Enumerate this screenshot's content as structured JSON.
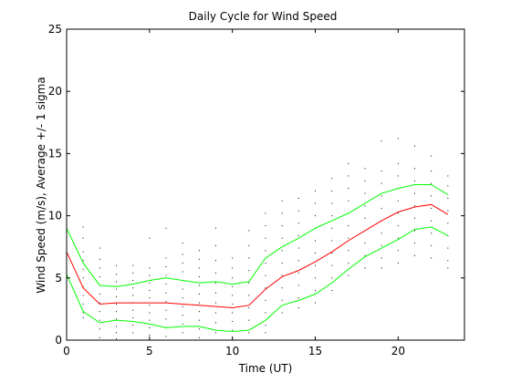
{
  "chart_data": {
    "type": "line",
    "title": "Daily Cycle for Wind Speed",
    "xlabel": "Time (UT)",
    "ylabel": "Wind Speed (m/s), Average +/- 1 sigma",
    "xlim": [
      0,
      24
    ],
    "ylim": [
      0,
      25
    ],
    "xticks": [
      0,
      5,
      10,
      15,
      20
    ],
    "yticks": [
      0,
      5,
      10,
      15,
      20,
      25
    ],
    "grid": false,
    "colors": {
      "average": "#ff0000",
      "sigma": "#00ff00",
      "scatter": "#000000",
      "axes": "#000000"
    },
    "x": [
      0,
      1,
      2,
      3,
      4,
      5,
      6,
      7,
      8,
      9,
      10,
      11,
      12,
      13,
      14,
      15,
      16,
      17,
      18,
      19,
      20,
      21,
      22,
      23
    ],
    "series": [
      {
        "values": [
          9.0,
          6.2,
          4.4,
          4.3,
          4.5,
          4.8,
          5.0,
          4.8,
          4.6,
          4.7,
          4.5,
          4.7,
          6.6,
          7.5,
          8.2,
          9.0,
          9.6,
          10.2,
          11.0,
          11.8,
          12.2,
          12.5,
          12.5,
          11.7
        ]
      },
      {
        "values": [
          7.1,
          4.2,
          2.9,
          3.0,
          3.0,
          3.0,
          3.0,
          2.9,
          2.8,
          2.7,
          2.6,
          2.8,
          4.1,
          5.1,
          5.6,
          6.3,
          7.1,
          8.0,
          8.8,
          9.6,
          10.3,
          10.7,
          10.9,
          10.1
        ]
      },
      {
        "values": [
          5.3,
          2.3,
          1.4,
          1.6,
          1.5,
          1.3,
          1.0,
          1.1,
          1.1,
          0.8,
          0.7,
          0.8,
          1.6,
          2.8,
          3.2,
          3.7,
          4.6,
          5.7,
          6.7,
          7.4,
          8.1,
          8.9,
          9.1,
          8.4
        ]
      }
    ],
    "scatter_columns": [
      {
        "x": 0,
        "values": [
          9.2,
          8.6,
          8.0,
          7.4,
          6.8,
          6.2,
          5.6,
          5.0,
          4.6
        ]
      },
      {
        "x": 1,
        "values": [
          9.1,
          8.2,
          7.1,
          6.4,
          5.7,
          5.0,
          4.3,
          3.6,
          2.9,
          2.2,
          1.8
        ]
      },
      {
        "x": 2,
        "values": [
          7.4,
          6.5,
          5.8,
          5.1,
          4.4,
          3.7,
          3.0,
          2.3,
          1.6,
          0.9,
          0.2
        ]
      },
      {
        "x": 3,
        "values": [
          6.0,
          5.3,
          4.7,
          4.1,
          3.5,
          2.9,
          2.3,
          1.7,
          1.1,
          0.6,
          0.1
        ]
      },
      {
        "x": 4,
        "values": [
          6.0,
          5.4,
          4.8,
          4.2,
          3.6,
          3.0,
          2.4,
          1.8,
          1.2,
          0.6
        ]
      },
      {
        "x": 5,
        "values": [
          8.2,
          5.8,
          5.2,
          4.6,
          4.0,
          3.4,
          2.8,
          2.2,
          1.6,
          1.0,
          0.4
        ]
      },
      {
        "x": 6,
        "values": [
          9.0,
          6.6,
          5.9,
          5.2,
          4.5,
          3.8,
          3.1,
          2.4,
          1.7,
          1.0,
          0.3
        ]
      },
      {
        "x": 7,
        "values": [
          7.8,
          6.9,
          6.2,
          5.5,
          4.8,
          4.1,
          3.4,
          2.7,
          2.0,
          1.3,
          0.6
        ]
      },
      {
        "x": 8,
        "values": [
          7.2,
          6.5,
          5.8,
          5.1,
          4.4,
          3.7,
          3.0,
          2.3,
          1.6,
          0.9,
          0.2
        ]
      },
      {
        "x": 9,
        "values": [
          9.0,
          7.6,
          6.4,
          5.4,
          4.6,
          3.8,
          3.0,
          2.2,
          1.4,
          0.6
        ]
      },
      {
        "x": 10,
        "values": [
          6.6,
          5.8,
          5.0,
          4.3,
          3.6,
          2.9,
          2.2,
          1.5,
          0.8,
          0.2
        ]
      },
      {
        "x": 11,
        "values": [
          8.8,
          7.6,
          6.6,
          5.6,
          4.6,
          3.6,
          2.6,
          1.6,
          0.6
        ]
      },
      {
        "x": 12,
        "values": [
          10.2,
          9.2,
          8.2,
          7.2,
          6.2,
          5.2,
          4.2,
          3.2,
          2.2,
          1.2,
          0.6
        ]
      },
      {
        "x": 13,
        "values": [
          11.2,
          10.2,
          9.2,
          8.2,
          7.2,
          6.2,
          5.2,
          4.2,
          3.2,
          2.2
        ]
      },
      {
        "x": 14,
        "values": [
          11.4,
          10.4,
          9.4,
          8.4,
          7.4,
          6.4,
          5.4,
          4.4,
          3.4,
          2.6
        ]
      },
      {
        "x": 15,
        "values": [
          12.0,
          11.0,
          10.0,
          9.0,
          8.0,
          7.0,
          6.0,
          5.0,
          4.0,
          3.0
        ]
      },
      {
        "x": 16,
        "values": [
          13.0,
          12.0,
          11.0,
          10.0,
          9.0,
          8.0,
          7.0,
          6.0,
          5.0,
          4.0
        ]
      },
      {
        "x": 17,
        "values": [
          14.2,
          13.2,
          12.2,
          11.2,
          10.2,
          9.2,
          8.2,
          7.2,
          6.2,
          5.2
        ]
      },
      {
        "x": 18,
        "values": [
          13.8,
          12.8,
          11.8,
          10.8,
          9.8,
          8.8,
          7.8,
          6.8,
          5.8
        ]
      },
      {
        "x": 19,
        "values": [
          16.0,
          13.6,
          12.6,
          11.6,
          10.6,
          9.6,
          8.6,
          7.6,
          6.6,
          5.8
        ]
      },
      {
        "x": 20,
        "values": [
          16.2,
          14.2,
          13.2,
          12.2,
          11.2,
          10.2,
          9.2,
          8.2,
          7.2,
          6.2
        ]
      },
      {
        "x": 21,
        "values": [
          15.6,
          13.8,
          12.8,
          11.8,
          10.8,
          9.8,
          8.8,
          7.8,
          6.8
        ]
      },
      {
        "x": 22,
        "values": [
          14.8,
          13.6,
          12.6,
          11.6,
          10.6,
          9.6,
          8.6,
          7.6,
          6.6
        ]
      },
      {
        "x": 23,
        "values": [
          13.2,
          12.4,
          11.4,
          10.4,
          9.4,
          8.4,
          7.4,
          6.4,
          5.8
        ]
      }
    ]
  }
}
